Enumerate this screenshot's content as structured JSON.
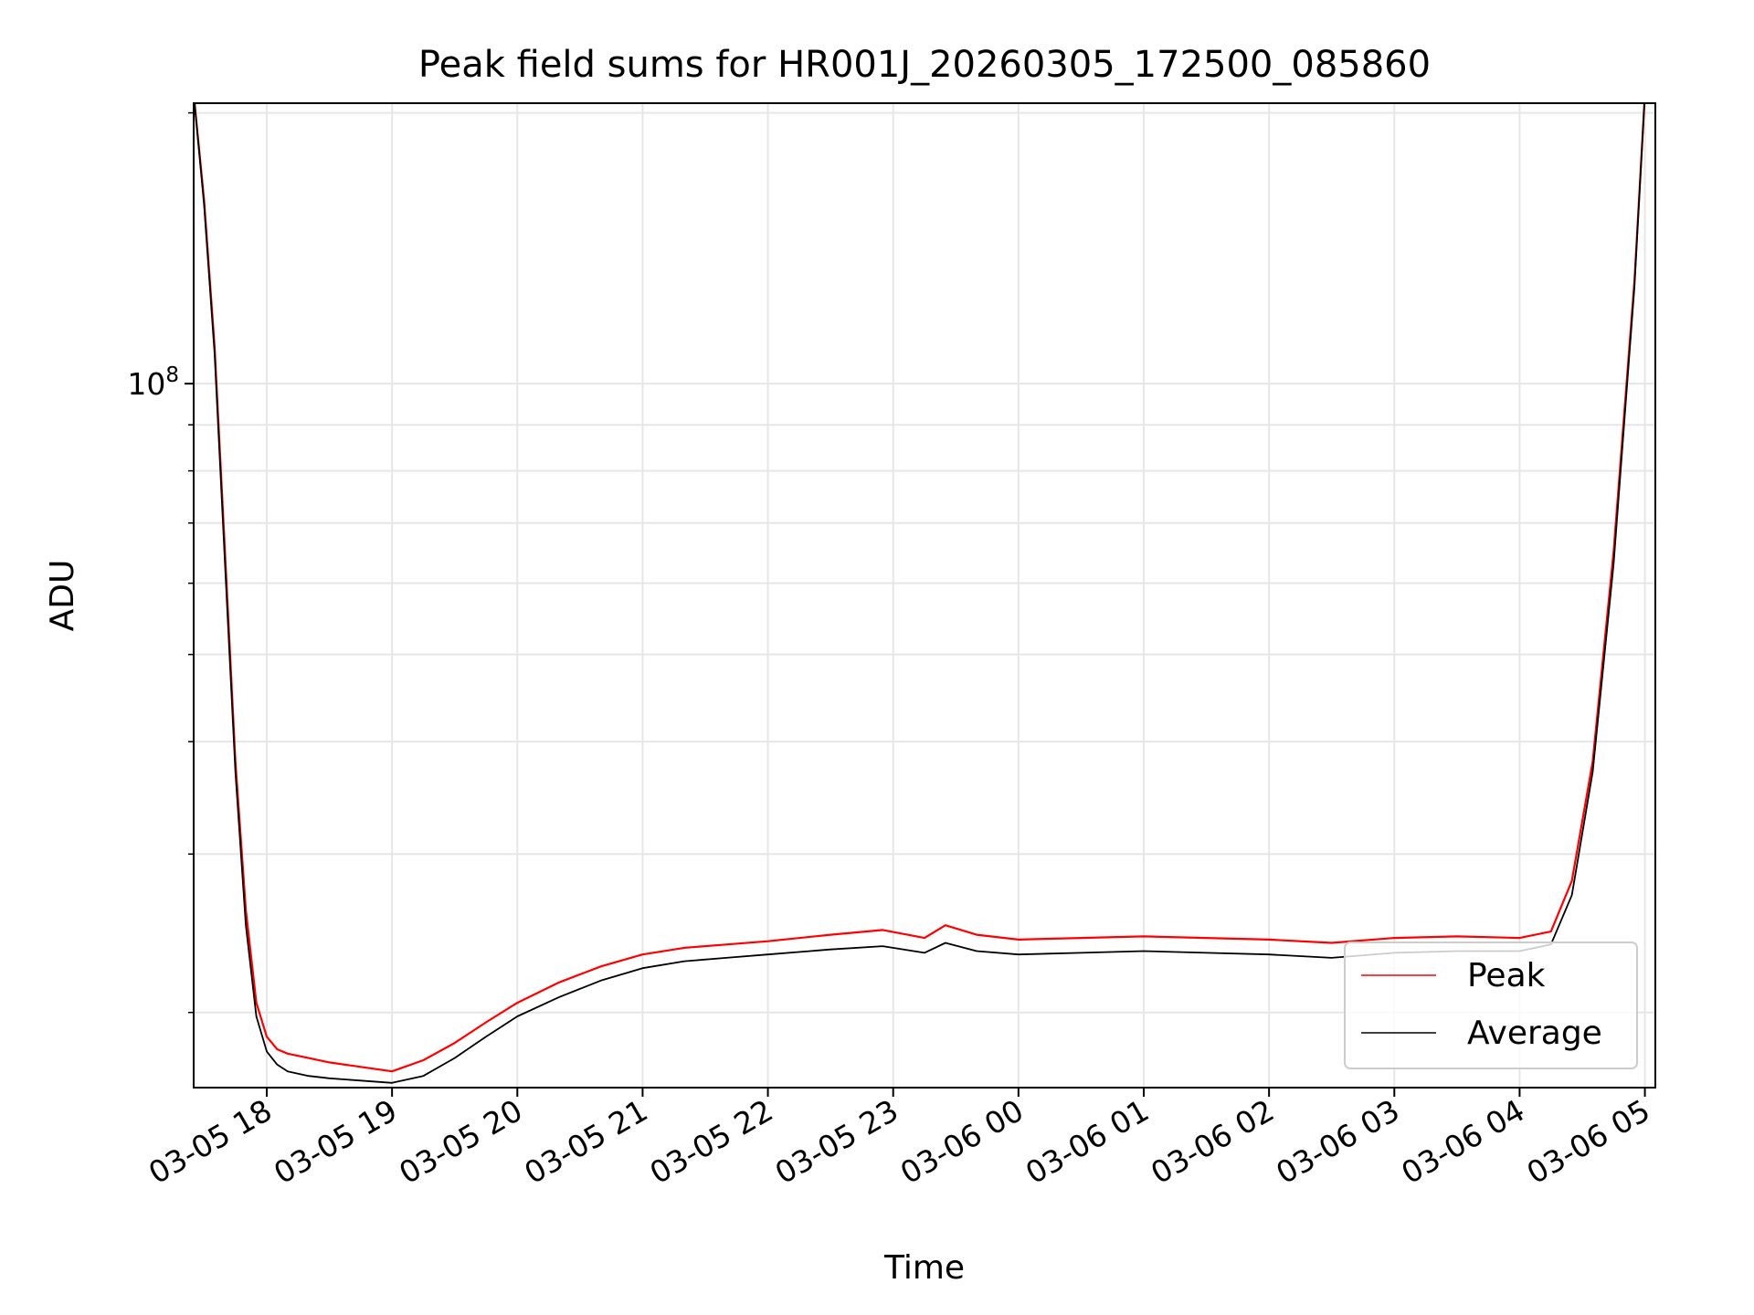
{
  "chart_data": {
    "type": "line",
    "title": "Peak field sums for HR001J_20260305_172500_085860",
    "xlabel": "Time",
    "ylabel": "ADU",
    "y_scale": "log",
    "ylim": [
      16500000,
      205000000
    ],
    "xlim": [
      "2026-03-05 17:25",
      "2026-03-06 05:05"
    ],
    "x_ticks": [
      "2026-03-05 18:00",
      "2026-03-05 19:00",
      "2026-03-05 20:00",
      "2026-03-05 21:00",
      "2026-03-05 22:00",
      "2026-03-05 23:00",
      "2026-03-06 00:00",
      "2026-03-06 01:00",
      "2026-03-06 02:00",
      "2026-03-06 03:00",
      "2026-03-06 04:00",
      "2026-03-06 05:00"
    ],
    "x_tick_labels": [
      "03-05 18",
      "03-05 19",
      "03-05 20",
      "03-05 21",
      "03-05 22",
      "03-05 23",
      "03-06 00",
      "03-06 01",
      "03-06 02",
      "03-06 03",
      "03-06 04",
      "03-06 05"
    ],
    "y_tick_labels": [
      {
        "value": 100000000,
        "base": "10",
        "exp": "8"
      }
    ],
    "grid": true,
    "legend_position": "lower-right",
    "colors": {
      "peak": "#ff0000",
      "average": "#000000",
      "grid": "#e6e6e6"
    },
    "series": [
      {
        "name": "Peak",
        "x": [
          "2026-03-05 17:25",
          "2026-03-05 17:30",
          "2026-03-05 17:35",
          "2026-03-05 17:40",
          "2026-03-05 17:45",
          "2026-03-05 17:50",
          "2026-03-05 17:55",
          "2026-03-05 18:00",
          "2026-03-05 18:05",
          "2026-03-05 18:10",
          "2026-03-05 18:20",
          "2026-03-05 18:30",
          "2026-03-05 18:45",
          "2026-03-05 19:00",
          "2026-03-05 19:15",
          "2026-03-05 19:30",
          "2026-03-05 19:45",
          "2026-03-05 20:00",
          "2026-03-05 20:20",
          "2026-03-05 20:40",
          "2026-03-05 21:00",
          "2026-03-05 21:20",
          "2026-03-05 21:40",
          "2026-03-05 22:00",
          "2026-03-05 22:30",
          "2026-03-05 22:55",
          "2026-03-05 23:15",
          "2026-03-05 23:25",
          "2026-03-05 23:40",
          "2026-03-06 00:00",
          "2026-03-06 00:30",
          "2026-03-06 01:00",
          "2026-03-06 01:30",
          "2026-03-06 02:00",
          "2026-03-06 02:30",
          "2026-03-06 03:00",
          "2026-03-06 03:30",
          "2026-03-06 04:00",
          "2026-03-06 04:15",
          "2026-03-06 04:25",
          "2026-03-06 04:35",
          "2026-03-06 04:45",
          "2026-03-06 04:55",
          "2026-03-06 05:00"
        ],
        "values": [
          210000000,
          160000000,
          110000000,
          65000000,
          38000000,
          26000000,
          20500000,
          18800000,
          18200000,
          18000000,
          17800000,
          17600000,
          17400000,
          17200000,
          17700000,
          18500000,
          19500000,
          20500000,
          21600000,
          22500000,
          23200000,
          23600000,
          23800000,
          24000000,
          24400000,
          24700000,
          24200000,
          25000000,
          24400000,
          24100000,
          24200000,
          24300000,
          24200000,
          24100000,
          23900000,
          24200000,
          24300000,
          24200000,
          24600000,
          28000000,
          38000000,
          65000000,
          130000000,
          210000000
        ]
      },
      {
        "name": "Average",
        "x": [
          "2026-03-05 17:25",
          "2026-03-05 17:30",
          "2026-03-05 17:35",
          "2026-03-05 17:40",
          "2026-03-05 17:45",
          "2026-03-05 17:50",
          "2026-03-05 17:55",
          "2026-03-05 18:00",
          "2026-03-05 18:05",
          "2026-03-05 18:10",
          "2026-03-05 18:20",
          "2026-03-05 18:30",
          "2026-03-05 18:45",
          "2026-03-05 19:00",
          "2026-03-05 19:15",
          "2026-03-05 19:30",
          "2026-03-05 19:45",
          "2026-03-05 20:00",
          "2026-03-05 20:20",
          "2026-03-05 20:40",
          "2026-03-05 21:00",
          "2026-03-05 21:20",
          "2026-03-05 21:40",
          "2026-03-05 22:00",
          "2026-03-05 22:30",
          "2026-03-05 22:55",
          "2026-03-05 23:15",
          "2026-03-05 23:25",
          "2026-03-05 23:40",
          "2026-03-06 00:00",
          "2026-03-06 00:30",
          "2026-03-06 01:00",
          "2026-03-06 01:30",
          "2026-03-06 02:00",
          "2026-03-06 02:30",
          "2026-03-06 03:00",
          "2026-03-06 03:30",
          "2026-03-06 04:00",
          "2026-03-06 04:15",
          "2026-03-06 04:25",
          "2026-03-06 04:35",
          "2026-03-06 04:45",
          "2026-03-06 04:55",
          "2026-03-06 05:00"
        ],
        "values": [
          210000000,
          158000000,
          108000000,
          63000000,
          37000000,
          25000000,
          19800000,
          18100000,
          17500000,
          17200000,
          17000000,
          16900000,
          16800000,
          16700000,
          17000000,
          17800000,
          18800000,
          19800000,
          20800000,
          21700000,
          22400000,
          22800000,
          23000000,
          23200000,
          23500000,
          23700000,
          23300000,
          23900000,
          23400000,
          23200000,
          23300000,
          23400000,
          23300000,
          23200000,
          23000000,
          23300000,
          23400000,
          23400000,
          23800000,
          27000000,
          37000000,
          63000000,
          128000000,
          210000000
        ]
      }
    ]
  }
}
